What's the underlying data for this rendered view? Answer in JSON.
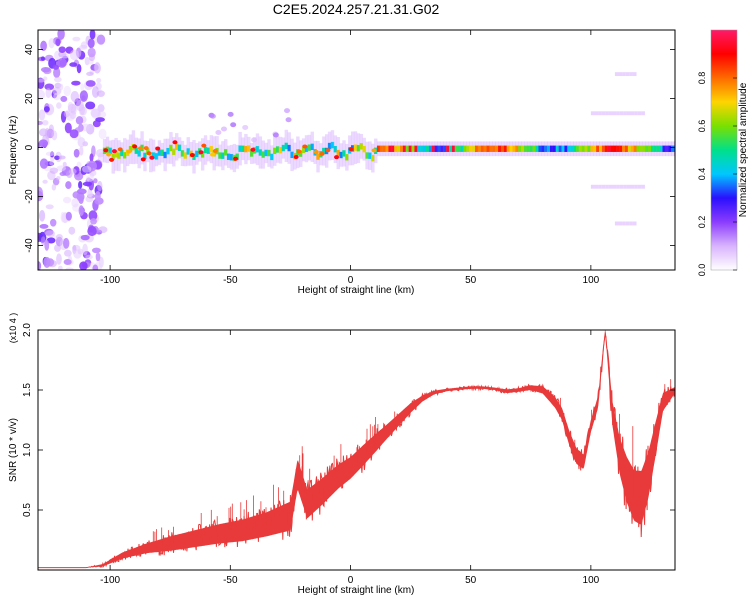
{
  "title": "C2E5.2024.257.21.31.G02",
  "colors": {
    "snr_line": "#e83a3a",
    "axis": "#000000",
    "colormap": [
      "#ffffff",
      "#d9b3ff",
      "#8b3cff",
      "#2a10ff",
      "#00c8ff",
      "#00e08a",
      "#7ae000",
      "#ffd400",
      "#ff6a00",
      "#ff0000",
      "#ff1a6a"
    ]
  },
  "chart_data": [
    {
      "type": "heatmap",
      "name": "spectrogram",
      "xlabel": "Height of straight line (km)",
      "ylabel": "Frequency (Hz)",
      "xlim": [
        -130,
        135
      ],
      "ylim": [
        -50,
        48
      ],
      "xticks": [
        -100,
        -50,
        0,
        50,
        100
      ],
      "yticks": [
        -40,
        -20,
        0,
        20,
        40
      ],
      "colorbar": {
        "label": "Normalized spectral amplitude",
        "range": [
          0,
          1
        ],
        "ticks": [
          "0.0",
          "0.2",
          "0.4",
          "0.6",
          "0.8"
        ]
      },
      "features": {
        "noise_region_x": [
          -130,
          -103
        ],
        "main_band_x": [
          -103,
          135
        ],
        "main_band_freq_hz": -1,
        "side_bands": [
          {
            "x": [
              100,
              121
            ],
            "freq_hz": 14
          },
          {
            "x": [
              100,
              121
            ],
            "freq_hz": -16
          },
          {
            "x": [
              110,
              118
            ],
            "freq_hz": 30
          },
          {
            "x": [
              110,
              118
            ],
            "freq_hz": -31
          }
        ]
      }
    },
    {
      "type": "line",
      "name": "snr",
      "xlabel": "Height of straight line (km)",
      "ylabel": "SNR (10 * v/v)",
      "ylabel_scale": "(x10 4 )",
      "xlim": [
        -130,
        135
      ],
      "ylim": [
        0,
        2.0
      ],
      "xticks": [
        -100,
        -50,
        0,
        50,
        100
      ],
      "yticks": [
        "0.5",
        "1.0",
        "1.5",
        "2.0"
      ],
      "x": [
        -130,
        -110,
        -103,
        -95,
        -85,
        -75,
        -65,
        -55,
        -45,
        -35,
        -25,
        -22,
        -18,
        -12,
        -5,
        0,
        5,
        10,
        15,
        20,
        25,
        30,
        35,
        40,
        45,
        50,
        55,
        60,
        65,
        70,
        75,
        80,
        85,
        88,
        91,
        94,
        97,
        100,
        103,
        106,
        109,
        112,
        115,
        118,
        121,
        124,
        127,
        130,
        135
      ],
      "y": [
        0.02,
        0.02,
        0.04,
        0.12,
        0.18,
        0.22,
        0.26,
        0.3,
        0.33,
        0.38,
        0.45,
        0.8,
        0.55,
        0.65,
        0.78,
        0.85,
        0.95,
        1.05,
        1.15,
        1.25,
        1.35,
        1.43,
        1.48,
        1.5,
        1.51,
        1.52,
        1.52,
        1.51,
        1.49,
        1.5,
        1.52,
        1.5,
        1.4,
        1.3,
        1.1,
        0.95,
        0.9,
        1.2,
        1.4,
        2.0,
        1.3,
        0.95,
        0.75,
        0.62,
        0.6,
        0.8,
        1.1,
        1.4,
        1.5
      ],
      "y_spread": [
        0,
        0,
        0.02,
        0.05,
        0.08,
        0.12,
        0.14,
        0.16,
        0.18,
        0.2,
        0.24,
        0.25,
        0.24,
        0.22,
        0.2,
        0.18,
        0.17,
        0.15,
        0.12,
        0.1,
        0.08,
        0.05,
        0.03,
        0.02,
        0.02,
        0.02,
        0.02,
        0.02,
        0.03,
        0.03,
        0.04,
        0.06,
        0.09,
        0.1,
        0.12,
        0.13,
        0.12,
        0.1,
        0.1,
        0.05,
        0.2,
        0.3,
        0.38,
        0.42,
        0.45,
        0.38,
        0.28,
        0.15,
        0.05
      ]
    }
  ]
}
